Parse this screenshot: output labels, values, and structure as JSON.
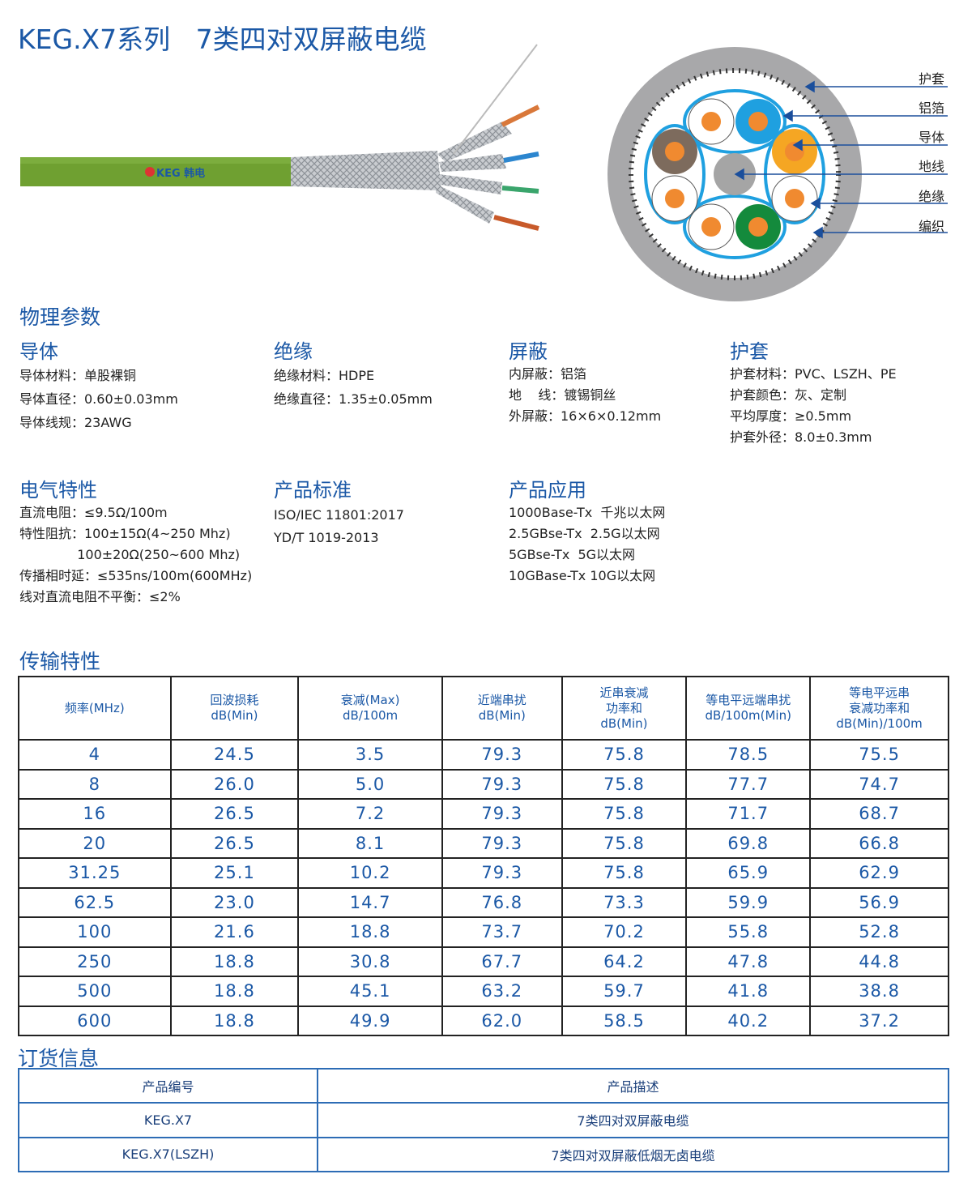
{
  "title": "KEG.X7系列   7类四对双屏蔽电缆",
  "cable_image": {
    "logo_text": "KEG 韩电",
    "jacket_color": "#6fa031"
  },
  "cross_section": {
    "labels": [
      "护套",
      "铝箔",
      "导体",
      "地线",
      "绝缘",
      "编织"
    ],
    "colors": {
      "jacket": "#a8a8aa",
      "foil": "#1fa0e0",
      "conductor": "#f08a30",
      "blue": "#1a8fd8",
      "orange": "#f5a623",
      "brown": "#7d6b5d",
      "green": "#148a3c",
      "arrow": "#1b4f9c"
    }
  },
  "physical": {
    "heading": "物理参数",
    "conductor": {
      "title": "导体",
      "lines": [
        "导体材料：单股裸铜",
        "导体直径：0.60±0.03mm",
        "导体线规：23AWG"
      ]
    },
    "insulation": {
      "title": "绝缘",
      "lines": [
        "绝缘材料：HDPE",
        "绝缘直径：1.35±0.05mm"
      ]
    },
    "shield": {
      "title": "屏蔽",
      "lines": [
        "内屏蔽：铝箔",
        "地    线：镀锡铜丝",
        "外屏蔽：16×6×0.12mm"
      ]
    },
    "jacket": {
      "title": "护套",
      "lines": [
        "护套材料：PVC、LSZH、PE",
        "护套颜色：灰、定制",
        "平均厚度：≥0.5mm",
        "护套外径：8.0±0.3mm"
      ]
    }
  },
  "electrical": {
    "title": "电气特性",
    "lines": [
      "直流电阻：≤9.5Ω/100m",
      "特性阻抗：100±15Ω(4~250 Mhz)",
      "              100±20Ω(250~600 Mhz)",
      "传播相时延：≤535ns/100m(600MHz)",
      "线对直流电阻不平衡：≤2%"
    ]
  },
  "standards": {
    "title": "产品标准",
    "lines": [
      "ISO/IEC 11801:2017",
      "YD/T 1019-2013"
    ]
  },
  "applications": {
    "title": "产品应用",
    "lines": [
      "1000Base-Tx  千兆以太网",
      "2.5GBse-Tx  2.5G以太网",
      "5GBse-Tx  5G以太网",
      "10GBase-Tx 10G以太网"
    ]
  },
  "transmission": {
    "title": "传输特性",
    "headers": [
      [
        "频率(MHz)"
      ],
      [
        "回波损耗",
        "dB(Min)"
      ],
      [
        "衰减(Max)",
        "dB/100m"
      ],
      [
        "近端串扰",
        "dB(Min)"
      ],
      [
        "近串衰减",
        "功率和",
        "dB(Min)"
      ],
      [
        "等电平远端串扰",
        "dB/100m(Min)"
      ],
      [
        "等电平远串",
        "衰减功率和",
        "dB(Min)/100m"
      ]
    ],
    "rows": [
      [
        "4",
        "24.5",
        "3.5",
        "79.3",
        "75.8",
        "78.5",
        "75.5"
      ],
      [
        "8",
        "26.0",
        "5.0",
        "79.3",
        "75.8",
        "77.7",
        "74.7"
      ],
      [
        "16",
        "26.5",
        "7.2",
        "79.3",
        "75.8",
        "71.7",
        "68.7"
      ],
      [
        "20",
        "26.5",
        "8.1",
        "79.3",
        "75.8",
        "69.8",
        "66.8"
      ],
      [
        "31.25",
        "25.1",
        "10.2",
        "79.3",
        "75.8",
        "65.9",
        "62.9"
      ],
      [
        "62.5",
        "23.0",
        "14.7",
        "76.8",
        "73.3",
        "59.9",
        "56.9"
      ],
      [
        "100",
        "21.6",
        "18.8",
        "73.7",
        "70.2",
        "55.8",
        "52.8"
      ],
      [
        "250",
        "18.8",
        "30.8",
        "67.7",
        "64.2",
        "47.8",
        "44.8"
      ],
      [
        "500",
        "18.8",
        "45.1",
        "63.2",
        "59.7",
        "41.8",
        "38.8"
      ],
      [
        "600",
        "18.8",
        "49.9",
        "62.0",
        "58.5",
        "40.2",
        "37.2"
      ]
    ]
  },
  "ordering": {
    "title": "订货信息",
    "headers": [
      "产品编号",
      "产品描述"
    ],
    "rows": [
      [
        "KEG.X7",
        "7类四对双屏蔽电缆"
      ],
      [
        "KEG.X7(LSZH)",
        "7类四对双屏蔽低烟无卤电缆"
      ]
    ]
  }
}
